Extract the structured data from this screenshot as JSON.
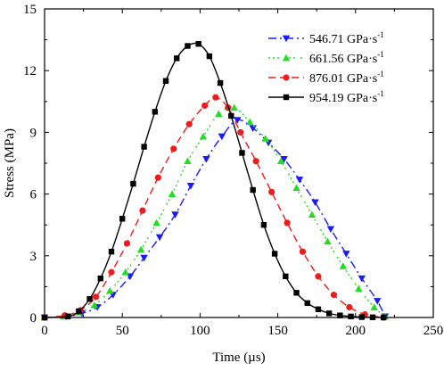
{
  "chart_data": {
    "type": "line",
    "xlabel": "Time (µs)",
    "ylabel": "Stress (MPa)",
    "xlim": [
      0,
      250
    ],
    "ylim": [
      0,
      15
    ],
    "xticks": [
      0,
      50,
      100,
      150,
      200,
      250
    ],
    "yticks": [
      0,
      3,
      6,
      9,
      12,
      15
    ],
    "x_tick_labels": [
      "0",
      "50",
      "100",
      "150",
      "200",
      "250"
    ],
    "y_tick_labels": [
      "0",
      "3",
      "6",
      "9",
      "12",
      "15"
    ],
    "grid": false,
    "legend_position": "top-right",
    "series": [
      {
        "name": "546.71 GPa·s",
        "name_sup": "-1",
        "color": "#1a1aff",
        "marker": "triangle-down",
        "dash": "9,4,2,4",
        "x": [
          0,
          14,
          24,
          34,
          44,
          55,
          64,
          74,
          84,
          94,
          104,
          114,
          124,
          134,
          144,
          154,
          164,
          174,
          184,
          194,
          204,
          214,
          219
        ],
        "y": [
          0,
          0.05,
          0.2,
          0.5,
          1.1,
          2.0,
          2.9,
          3.9,
          5.0,
          6.4,
          7.7,
          8.8,
          9.6,
          9.2,
          8.5,
          7.7,
          6.7,
          5.6,
          4.3,
          3.1,
          1.9,
          0.8,
          0.05
        ]
      },
      {
        "name": "661.56 GPa·s",
        "name_sup": "-1",
        "color": "#22dd22",
        "marker": "triangle-up",
        "dash": "2,3,2,3,2,6",
        "x": [
          0,
          12,
          22,
          32,
          42,
          52,
          62,
          72,
          82,
          92,
          102,
          112,
          122,
          132,
          142,
          152,
          162,
          172,
          182,
          192,
          202,
          212,
          219
        ],
        "y": [
          0,
          0.05,
          0.25,
          0.6,
          1.3,
          2.2,
          3.3,
          4.6,
          6.0,
          7.6,
          8.8,
          9.9,
          10.2,
          9.5,
          8.7,
          7.6,
          6.3,
          5.0,
          3.7,
          2.5,
          1.4,
          0.5,
          0.05
        ]
      },
      {
        "name": "876.01 GPa·s",
        "name_sup": "-1",
        "color": "#ee1c1c",
        "marker": "circle",
        "dash": "8,5",
        "x": [
          0,
          13,
          23,
          33,
          43,
          53,
          63,
          73,
          83,
          93,
          103,
          110,
          118,
          126,
          136,
          146,
          156,
          166,
          176,
          186,
          196,
          206,
          218
        ],
        "y": [
          0,
          0.1,
          0.35,
          1.0,
          2.2,
          3.6,
          5.2,
          6.8,
          8.2,
          9.4,
          10.3,
          10.7,
          10.2,
          9.0,
          7.6,
          6.1,
          4.6,
          3.2,
          2.0,
          1.1,
          0.5,
          0.15,
          0
        ]
      },
      {
        "name": "954.19 GPa·s",
        "name_sup": "-1",
        "color": "#000000",
        "marker": "square",
        "dash": "",
        "x": [
          0,
          15,
          22,
          29,
          36,
          43,
          50,
          57,
          64,
          71,
          78,
          85,
          92,
          99,
          106,
          113,
          120,
          127,
          134,
          141,
          148,
          155,
          162,
          169,
          176,
          183,
          190,
          197,
          204,
          211,
          218
        ],
        "y": [
          0,
          0.05,
          0.3,
          0.9,
          1.9,
          3.2,
          4.8,
          6.5,
          8.3,
          10.0,
          11.5,
          12.6,
          13.2,
          13.3,
          12.7,
          11.4,
          9.8,
          8.0,
          6.2,
          4.5,
          3.1,
          2.0,
          1.2,
          0.7,
          0.4,
          0.2,
          0.1,
          0.05,
          0.02,
          0.01,
          0
        ]
      }
    ]
  }
}
